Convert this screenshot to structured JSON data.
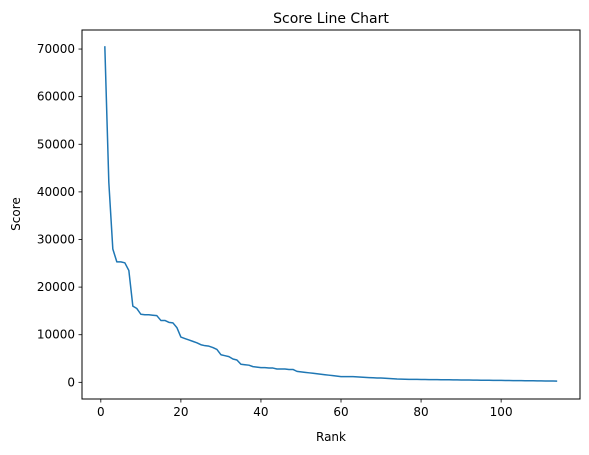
{
  "chart_data": {
    "type": "line",
    "title": "Score Line Chart",
    "xlabel": "Rank",
    "ylabel": "Score",
    "xlim": [
      -4.7,
      119.7
    ],
    "ylim": [
      -3500,
      74000
    ],
    "xticks": [
      0,
      20,
      40,
      60,
      80,
      100
    ],
    "yticks": [
      0,
      10000,
      20000,
      30000,
      40000,
      50000,
      60000,
      70000
    ],
    "grid": false,
    "legend": "none",
    "line_color": "#1f77b4",
    "series": [
      {
        "x": [
          1,
          2,
          3,
          4,
          5,
          6,
          7,
          8,
          9,
          10,
          11,
          12,
          13,
          14,
          15,
          16,
          17,
          18,
          19,
          20,
          21,
          22,
          23,
          24,
          25,
          26,
          27,
          28,
          29,
          30,
          31,
          32,
          33,
          34,
          35,
          36,
          37,
          38,
          39,
          40,
          41,
          42,
          43,
          44,
          45,
          46,
          47,
          48,
          49,
          50,
          51,
          52,
          53,
          54,
          55,
          56,
          57,
          58,
          59,
          60,
          61,
          62,
          63,
          64,
          65,
          66,
          67,
          68,
          69,
          70,
          71,
          72,
          73,
          74,
          75,
          76,
          77,
          78,
          79,
          80,
          81,
          82,
          83,
          84,
          85,
          86,
          87,
          88,
          89,
          90,
          91,
          92,
          93,
          94,
          95,
          96,
          97,
          98,
          99,
          100,
          101,
          102,
          103,
          104,
          105,
          106,
          107,
          108,
          109,
          110,
          111,
          112,
          113,
          114
        ],
        "values": [
          70600,
          42000,
          28000,
          25300,
          25300,
          25100,
          23500,
          16000,
          15500,
          14300,
          14200,
          14200,
          14100,
          14000,
          13000,
          13000,
          12600,
          12500,
          11500,
          9500,
          9200,
          8900,
          8600,
          8300,
          7900,
          7700,
          7600,
          7300,
          6900,
          5800,
          5600,
          5400,
          4900,
          4700,
          3800,
          3700,
          3600,
          3300,
          3200,
          3100,
          3100,
          3000,
          3000,
          2800,
          2800,
          2800,
          2700,
          2700,
          2300,
          2200,
          2100,
          2000,
          1900,
          1800,
          1700,
          1600,
          1500,
          1400,
          1300,
          1200,
          1200,
          1200,
          1200,
          1150,
          1100,
          1050,
          1000,
          950,
          900,
          900,
          850,
          800,
          750,
          700,
          680,
          650,
          630,
          620,
          610,
          600,
          590,
          580,
          570,
          560,
          550,
          540,
          530,
          520,
          510,
          500,
          490,
          480,
          470,
          460,
          450,
          440,
          430,
          420,
          410,
          400,
          390,
          380,
          370,
          360,
          350,
          340,
          330,
          320,
          310,
          300,
          290,
          280,
          270,
          260
        ]
      }
    ]
  }
}
